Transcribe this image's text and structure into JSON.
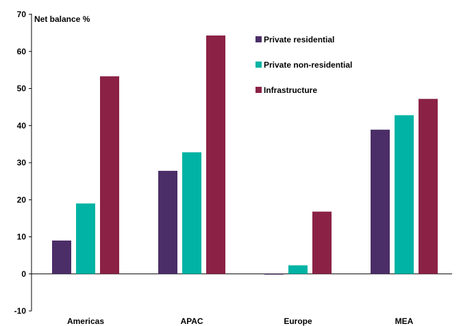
{
  "chart_data": {
    "type": "bar",
    "title": "",
    "ylabel": "Net balance %",
    "xlabel": "",
    "categories": [
      "Americas",
      "APAC",
      "Europe",
      "MEA"
    ],
    "series": [
      {
        "name": "Private residential",
        "color": "#4b2e67",
        "values": [
          9,
          27.8,
          -0.2,
          38.9
        ]
      },
      {
        "name": "Private non-residential",
        "color": "#00b3a4",
        "values": [
          19,
          32.8,
          2.3,
          42.8
        ]
      },
      {
        "name": "Infrastructure",
        "color": "#8b2245",
        "values": [
          53.3,
          64.3,
          16.8,
          47.2
        ]
      }
    ],
    "ylim": [
      -10,
      70
    ],
    "yticks": [
      "-10",
      "0",
      "10",
      "20",
      "30",
      "40",
      "50",
      "60",
      "70"
    ],
    "grid": false,
    "legend_position": "top-right"
  }
}
